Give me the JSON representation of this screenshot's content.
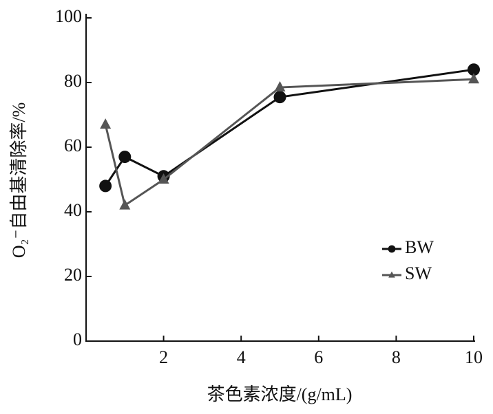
{
  "chart_data": {
    "type": "line",
    "x_label": "茶色素浓度/(g/mL)",
    "y_label": "O₂⁻自由基清除率/%",
    "xlim": [
      0,
      10
    ],
    "xticks": [
      2,
      4,
      6,
      8,
      10
    ],
    "ylim": [
      0,
      100
    ],
    "yticks": [
      0,
      20,
      40,
      60,
      80,
      100
    ],
    "legend": "lower-right",
    "series": [
      {
        "name": "BW",
        "color": "#111111",
        "marker": "circle",
        "x": [
          0.5,
          1,
          2,
          5,
          10
        ],
        "values": [
          48,
          57,
          51,
          75.5,
          84
        ]
      },
      {
        "name": "SW",
        "color": "#555555",
        "marker": "triangle",
        "x": [
          0.5,
          1,
          2,
          5,
          10
        ],
        "values": [
          67,
          42,
          50,
          78.5,
          81
        ]
      }
    ]
  }
}
